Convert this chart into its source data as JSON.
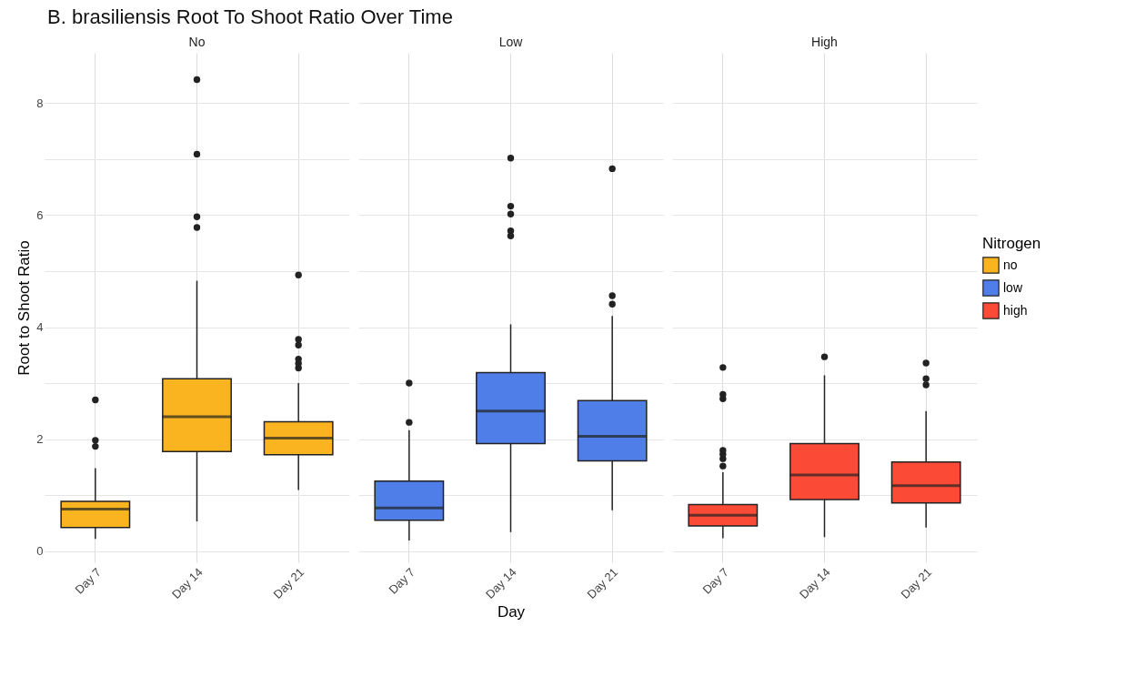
{
  "chart_data": [
    {
      "type": "box",
      "title": "B. brasiliensis Root To Shoot Ratio Over Time",
      "subtitle": "No",
      "ylabel": "Root to Shoot Ratio",
      "categories": [
        "Day 7",
        "Day 14",
        "Day 21"
      ],
      "ylim": [
        -0.2,
        8.9
      ],
      "yticks": [
        0,
        {
          "value": 1,
          "label": null
        },
        2,
        {
          "value": 3,
          "label": null
        },
        4,
        {
          "value": 5,
          "label": null
        },
        6,
        {
          "value": 7,
          "label": null
        },
        8
      ],
      "grid": true,
      "series": [
        {
          "name": "no",
          "color": "#f9b420",
          "boxes": [
            {
              "low": 0.22,
              "q1": 0.42,
              "median": 0.75,
              "q3": 0.89,
              "high": 1.48,
              "outliers": [
                1.87,
                1.98,
                2.7
              ]
            },
            {
              "low": 0.53,
              "q1": 1.78,
              "median": 2.4,
              "q3": 3.08,
              "high": 4.83,
              "outliers": [
                5.78,
                5.97,
                7.09,
                8.42
              ]
            },
            {
              "low": 1.09,
              "q1": 1.72,
              "median": 2.02,
              "q3": 2.31,
              "high": 3.0,
              "outliers": [
                3.27,
                3.35,
                3.43,
                3.68,
                3.78,
                4.93
              ]
            }
          ]
        }
      ]
    },
    {
      "type": "box",
      "subtitle": "Low",
      "xlabel": "Day",
      "categories": [
        "Day 7",
        "Day 14",
        "Day 21"
      ],
      "ylim": [
        -0.2,
        8.9
      ],
      "yticks": [
        0,
        {
          "value": 1,
          "label": null
        },
        2,
        {
          "value": 3,
          "label": null
        },
        4,
        {
          "value": 5,
          "label": null
        },
        6,
        {
          "value": 7,
          "label": null
        },
        8
      ],
      "grid": true,
      "tick_labels": "x",
      "series": [
        {
          "name": "low",
          "color": "#4f7ee8",
          "boxes": [
            {
              "low": 0.19,
              "q1": 0.55,
              "median": 0.77,
              "q3": 1.25,
              "high": 2.16,
              "outliers": [
                2.3,
                3.0
              ]
            },
            {
              "low": 0.34,
              "q1": 1.92,
              "median": 2.5,
              "q3": 3.19,
              "high": 4.05,
              "outliers": [
                5.63,
                5.72,
                6.02,
                6.16,
                7.02
              ]
            },
            {
              "low": 0.73,
              "q1": 1.61,
              "median": 2.05,
              "q3": 2.69,
              "high": 4.2,
              "outliers": [
                4.41,
                4.56,
                6.83
              ]
            }
          ]
        }
      ]
    },
    {
      "type": "box",
      "subtitle": "High",
      "legend_title": "Nitrogen",
      "legend": "right",
      "categories": [
        "Day 7",
        "Day 14",
        "Day 21"
      ],
      "ylim": [
        -0.2,
        8.9
      ],
      "yticks": [
        0,
        {
          "value": 1,
          "label": null
        },
        2,
        {
          "value": 3,
          "label": null
        },
        4,
        {
          "value": 5,
          "label": null
        },
        6,
        {
          "value": 7,
          "label": null
        },
        8
      ],
      "grid": true,
      "tick_labels": "x",
      "series": [
        {
          "name": "high",
          "color": "#fb4a36",
          "boxes": [
            {
              "low": 0.23,
              "q1": 0.45,
              "median": 0.64,
              "q3": 0.83,
              "high": 1.41,
              "outliers": [
                1.52,
                1.65,
                1.73,
                1.8,
                2.72,
                2.8,
                3.28
              ]
            },
            {
              "low": 0.25,
              "q1": 0.92,
              "median": 1.36,
              "q3": 1.92,
              "high": 3.14,
              "outliers": [
                3.47
              ]
            },
            {
              "low": 0.42,
              "q1": 0.86,
              "median": 1.17,
              "q3": 1.59,
              "high": 2.5,
              "outliers": [
                2.97,
                3.08,
                3.36
              ]
            }
          ]
        }
      ]
    }
  ]
}
